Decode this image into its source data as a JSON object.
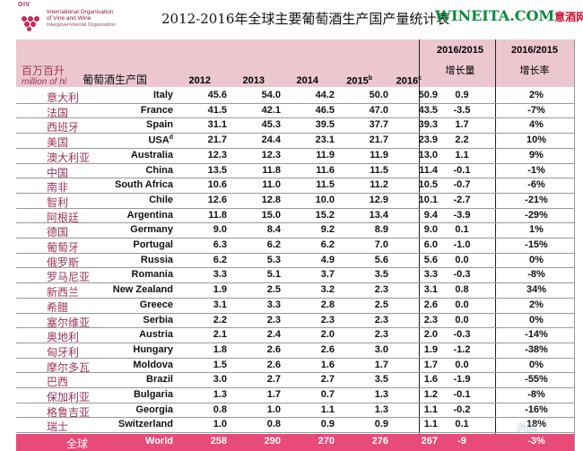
{
  "logo": {
    "abbr": "OIV",
    "org_line1": "International Organisation",
    "org_line2": "of Vine and Wine",
    "org_line3": "Intergovernmental Organisation"
  },
  "title": "2012-2016年全球主要葡萄酒生产国产量统计表",
  "brand": {
    "site": "WINEITA.COM",
    "cn": "意酒网"
  },
  "header": {
    "unit_cn": "百万百升",
    "unit_en": "million of hl",
    "country_label": "葡萄酒生产国",
    "years": [
      "2012",
      "2013",
      "2014",
      "2015",
      "2016"
    ],
    "year_sups": [
      "",
      "",
      "",
      "b",
      "c"
    ],
    "cmp1_title": "2016/2015",
    "cmp1_sub": "增长量",
    "cmp2_title": "2016/2015",
    "cmp2_sub": "增长率"
  },
  "rows": [
    {
      "cn": "意大利",
      "en": "Italy",
      "sup": "",
      "v": [
        "45.6",
        "54.0",
        "44.2",
        "50.0",
        "50.9"
      ],
      "delta": "0.9",
      "pct": "2%"
    },
    {
      "cn": "法国",
      "en": "France",
      "sup": "",
      "v": [
        "41.5",
        "42.1",
        "46.5",
        "47.0",
        "43.5"
      ],
      "delta": "-3.5",
      "pct": "-7%"
    },
    {
      "cn": "西班牙",
      "en": "Spain",
      "sup": "",
      "v": [
        "31.1",
        "45.3",
        "39.5",
        "37.7",
        "39.3"
      ],
      "delta": "1.7",
      "pct": "4%"
    },
    {
      "cn": "美国",
      "en": "USA",
      "sup": "d",
      "v": [
        "21.7",
        "24.4",
        "23.1",
        "21.7",
        "23.9"
      ],
      "delta": "2.2",
      "pct": "10%"
    },
    {
      "cn": "澳大利亚",
      "en": "Australia",
      "sup": "",
      "v": [
        "12.3",
        "12.3",
        "11.9",
        "11.9",
        "13.0"
      ],
      "delta": "1.1",
      "pct": "9%"
    },
    {
      "cn": "中国",
      "en": "China",
      "sup": "",
      "v": [
        "13.5",
        "11.8",
        "11.6",
        "11.5",
        "11.4"
      ],
      "delta": "-0.1",
      "pct": "-1%"
    },
    {
      "cn": "南非",
      "en": "South Africa",
      "sup": "",
      "v": [
        "10.6",
        "11.0",
        "11.5",
        "11.2",
        "10.5"
      ],
      "delta": "-0.7",
      "pct": "-6%"
    },
    {
      "cn": "智利",
      "en": "Chile",
      "sup": "",
      "v": [
        "12.6",
        "12.8",
        "10.0",
        "12.9",
        "10.1"
      ],
      "delta": "-2.7",
      "pct": "-21%"
    },
    {
      "cn": "阿根廷",
      "en": "Argentina",
      "sup": "",
      "v": [
        "11.8",
        "15.0",
        "15.2",
        "13.4",
        "9.4"
      ],
      "delta": "-3.9",
      "pct": "-29%"
    },
    {
      "cn": "德国",
      "en": "Germany",
      "sup": "",
      "v": [
        "9.0",
        "8.4",
        "9.2",
        "8.9",
        "9.0"
      ],
      "delta": "0.1",
      "pct": "1%"
    },
    {
      "cn": "葡萄牙",
      "en": "Portugal",
      "sup": "",
      "v": [
        "6.3",
        "6.2",
        "6.2",
        "7.0",
        "6.0"
      ],
      "delta": "-1.0",
      "pct": "-15%"
    },
    {
      "cn": "俄罗斯",
      "en": "Russia",
      "sup": "",
      "v": [
        "6.2",
        "5.3",
        "4.9",
        "5.6",
        "5.6"
      ],
      "delta": "0.0",
      "pct": "0%"
    },
    {
      "cn": "罗马尼亚",
      "en": "Romania",
      "sup": "",
      "v": [
        "3.3",
        "5.1",
        "3.7",
        "3.5",
        "3.3"
      ],
      "delta": "-0.3",
      "pct": "-8%"
    },
    {
      "cn": "新西兰",
      "en": "New Zealand",
      "sup": "",
      "v": [
        "1.9",
        "2.5",
        "3.2",
        "2.3",
        "3.1"
      ],
      "delta": "0.8",
      "pct": "34%"
    },
    {
      "cn": "希腊",
      "en": "Greece",
      "sup": "",
      "v": [
        "3.1",
        "3.3",
        "2.8",
        "2.5",
        "2.6"
      ],
      "delta": "0.0",
      "pct": "2%"
    },
    {
      "cn": "塞尔维亚",
      "en": "Serbia",
      "sup": "",
      "v": [
        "2.2",
        "2.3",
        "2.3",
        "2.3",
        "2.3"
      ],
      "delta": "0.0",
      "pct": "0%"
    },
    {
      "cn": "奥地利",
      "en": "Austria",
      "sup": "",
      "v": [
        "2.1",
        "2.4",
        "2.0",
        "2.3",
        "2.0"
      ],
      "delta": "-0.3",
      "pct": "-14%"
    },
    {
      "cn": "匈牙利",
      "en": "Hungary",
      "sup": "",
      "v": [
        "1.8",
        "2.6",
        "2.6",
        "3.0",
        "1.9"
      ],
      "delta": "-1.2",
      "pct": "-38%"
    },
    {
      "cn": "摩尔多瓦",
      "en": "Moldova",
      "sup": "",
      "v": [
        "1.5",
        "2.6",
        "1.6",
        "1.7",
        "1.7"
      ],
      "delta": "0.0",
      "pct": "0%"
    },
    {
      "cn": "巴西",
      "en": "Brazil",
      "sup": "",
      "v": [
        "3.0",
        "2.7",
        "2.7",
        "3.5",
        "1.6"
      ],
      "delta": "-1.9",
      "pct": "-55%"
    },
    {
      "cn": "保加利亚",
      "en": "Bulgaria",
      "sup": "",
      "v": [
        "1.3",
        "1.7",
        "0.7",
        "1.3",
        "1.2"
      ],
      "delta": "-0.1",
      "pct": "-8%"
    },
    {
      "cn": "格鲁吉亚",
      "en": "Georgia",
      "sup": "",
      "v": [
        "0.8",
        "1.0",
        "1.1",
        "1.3",
        "1.1"
      ],
      "delta": "-0.2",
      "pct": "-16%"
    },
    {
      "cn": "瑞士",
      "en": "Switzerland",
      "sup": "",
      "v": [
        "1.0",
        "0.8",
        "0.9",
        "0.9",
        "1.1"
      ],
      "delta": "0.1",
      "pct": "18%"
    }
  ],
  "total": {
    "cn": "全球",
    "en": "World",
    "v": [
      "258",
      "290",
      "270",
      "276",
      "267"
    ],
    "delta": "-9",
    "pct": "-3%"
  },
  "watermark": "酒网"
}
